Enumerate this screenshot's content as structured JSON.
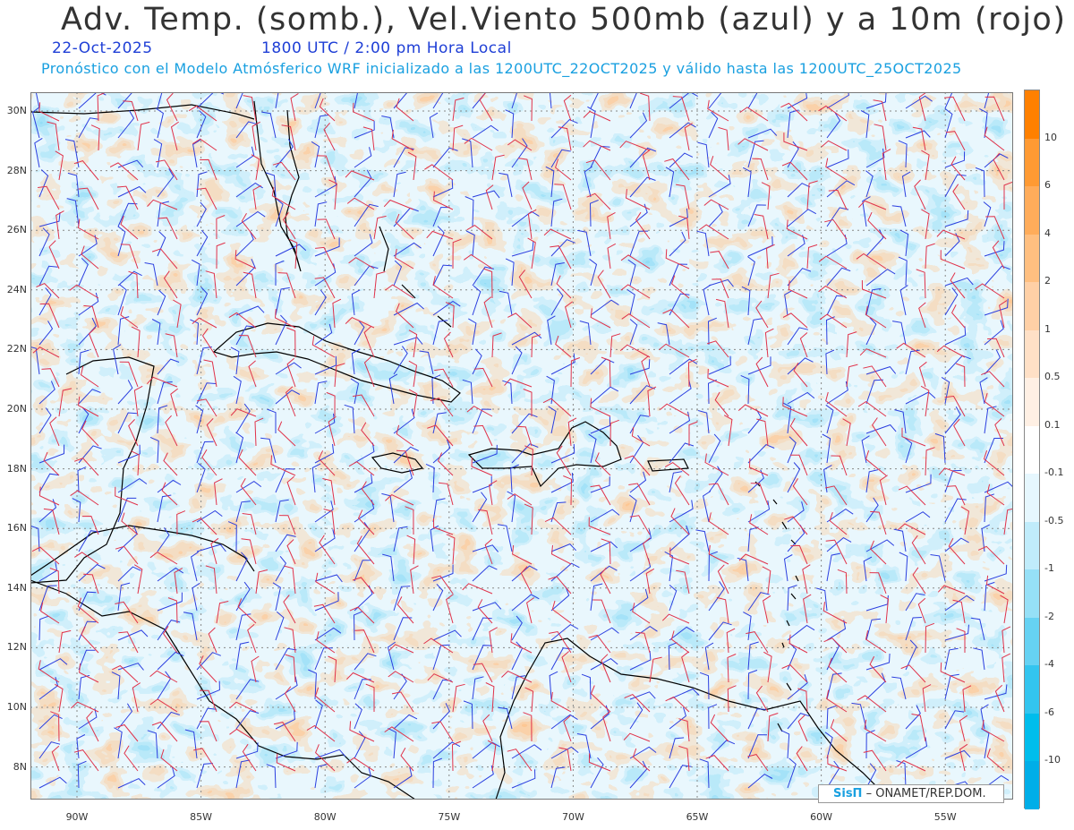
{
  "header": {
    "title": "Adv. Temp. (somb.), Vel.Viento 500mb (azul) y a 10m (rojo)",
    "date": "22-Oct-2025",
    "valid_time": "1800 UTC / 2:00 pm Hora Local",
    "model_info": "Pronóstico con el Modelo Atmósferico WRF inicializado a las 1200UTC_22OCT2025 y válido hasta las  1200UTC_25OCT2025"
  },
  "map": {
    "lat_labels": [
      "30N",
      "28N",
      "26N",
      "24N",
      "22N",
      "20N",
      "18N",
      "16N",
      "14N",
      "12N",
      "10N",
      "8N"
    ],
    "lon_labels": [
      "90W",
      "85W",
      "80W",
      "75W",
      "70W",
      "65W",
      "60W",
      "55W"
    ],
    "colors": {
      "upper_wind_barbs": "#2b3fe0",
      "surface_wind_barbs": "#e0324a",
      "coastline": "#000000",
      "grid": "#888888"
    }
  },
  "colorbar": {
    "labels": [
      "10",
      "6",
      "4",
      "2",
      "1",
      "0.5",
      "0.1",
      "-0.1",
      "-0.5",
      "-1",
      "-2",
      "-4",
      "-6",
      "-10"
    ],
    "colors": [
      "#ff8000",
      "#ff9a33",
      "#ffac5a",
      "#ffbf80",
      "#ffd0a6",
      "#ffe0c6",
      "#fff0e4",
      "#ffffff",
      "#e6f7fe",
      "#c0ecfb",
      "#96e0f7",
      "#66d2f3",
      "#33c5ef",
      "#00bdec",
      "#00aee8"
    ]
  },
  "credit": {
    "logo": "SisΠ",
    "text": "– ONAMET/REP.DOM."
  }
}
